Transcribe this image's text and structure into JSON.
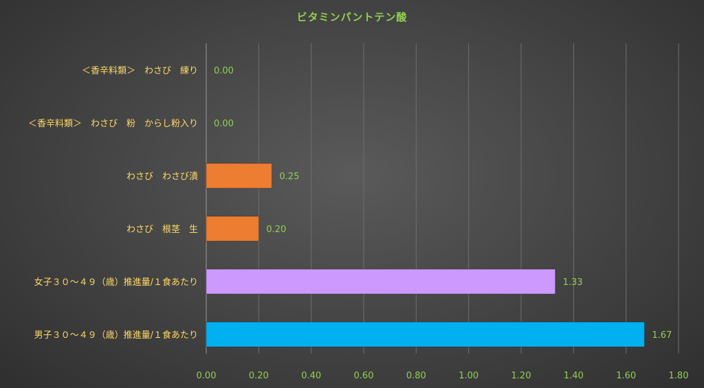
{
  "chart_data": {
    "type": "bar",
    "orientation": "horizontal",
    "title": "ビタミンパントテン酸",
    "categories": [
      "＜香辛料類＞　わさび　練り",
      "＜香辛料類＞　わさび　粉　からし粉入り",
      "わさび　わさび漬",
      "わさび　根茎　生",
      "女子３０～４９（歳）推進量/１食あたり",
      "男子３０～４９（歳）推進量/１食あたり"
    ],
    "values": [
      0.0,
      0.0,
      0.25,
      0.2,
      1.33,
      1.67
    ],
    "value_labels": [
      "0.00",
      "0.00",
      "0.25",
      "0.20",
      "1.33",
      "1.67"
    ],
    "bar_colors": [
      "#ed7d31",
      "#ed7d31",
      "#ed7d31",
      "#ed7d31",
      "#cc99ff",
      "#00b0f0"
    ],
    "xlim": [
      0,
      1.8
    ],
    "xticks": [
      "0.00",
      "0.20",
      "0.40",
      "0.60",
      "0.80",
      "1.00",
      "1.20",
      "1.40",
      "1.60",
      "1.80"
    ],
    "grid": true,
    "legend": "none"
  },
  "colors": {
    "title": "#92d050",
    "category_text": "#ffd966",
    "tick_text": "#92d050",
    "data_label_text": "#92d050",
    "gridline": "#6e6e6e",
    "axis_line": "#9a9a9a"
  }
}
